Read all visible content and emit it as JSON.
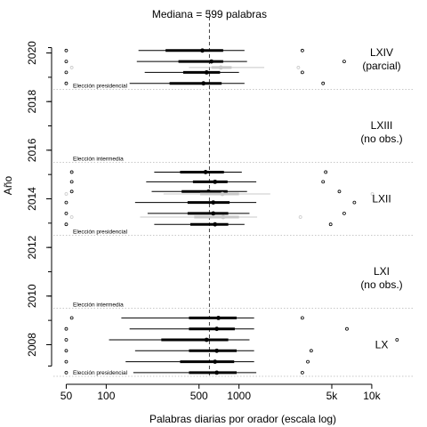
{
  "chart_data": {
    "type": "scatter",
    "title": "Mediana = 599 palabras",
    "xlabel": "Palabras diarias por orador (escala log)",
    "ylabel": "Año",
    "x_scale": "log",
    "xlim": [
      40,
      21000
    ],
    "ylim": [
      2006.7,
      2021.3
    ],
    "median": 599,
    "x_ticks": [
      {
        "value": 50,
        "label": "50"
      },
      {
        "value": 100,
        "label": "100"
      },
      {
        "value": 500,
        "label": "500"
      },
      {
        "value": 1000,
        "label": "1000"
      },
      {
        "value": 5000,
        "label": "5k"
      },
      {
        "value": 10000,
        "label": "10k"
      }
    ],
    "y_ticks": [
      2008,
      2010,
      2012,
      2014,
      2016,
      2018,
      2020
    ],
    "colors": {
      "observed": "#000000",
      "not_observed": "#c8c8c8",
      "reference": "#c8c8c8",
      "median": "#404040"
    },
    "election_lines": [
      {
        "year": 2006.7,
        "label": "Elección presidencial"
      },
      {
        "year": 2009.5,
        "label": "Elección intermedia"
      },
      {
        "year": 2012.5,
        "label": "Elección presidencial"
      },
      {
        "year": 2015.5,
        "label": "Elección intermedia"
      },
      {
        "year": 2018.5,
        "label": "Elección presidencial"
      }
    ],
    "legislatures": [
      {
        "name": "LXIV",
        "note": "(parcial)",
        "observed": true,
        "y": 2019.8
      },
      {
        "name": "LXIII",
        "note": "(no obs.)",
        "observed": false,
        "y": 2016.8
      },
      {
        "name": "LXII",
        "note": "",
        "observed": true,
        "y": 2014.0
      },
      {
        "name": "LXI",
        "note": "(no obs.)",
        "observed": false,
        "y": 2010.8
      },
      {
        "name": "LX",
        "note": "",
        "observed": true,
        "y": 2008.0
      }
    ],
    "series": [
      {
        "name": "black",
        "color": "#000000",
        "rows": [
          {
            "y": 2020.1,
            "q05": 175,
            "q25": 280,
            "median": 530,
            "q75": 760,
            "q95": 1100,
            "lo": 50,
            "hi": 3000
          },
          {
            "y": 2019.65,
            "q05": 170,
            "q25": 350,
            "median": 620,
            "q75": 760,
            "q95": 1150,
            "lo": 50,
            "hi": 6200
          },
          {
            "y": 2019.2,
            "q05": 195,
            "q25": 380,
            "median": 570,
            "q75": 720,
            "q95": 1000,
            "lo": 50,
            "hi": 3000
          },
          {
            "y": 2018.75,
            "q05": 150,
            "q25": 300,
            "median": 540,
            "q75": 740,
            "q95": 1100,
            "lo": 50,
            "hi": 4300
          },
          {
            "y": 2015.1,
            "q05": 230,
            "q25": 360,
            "median": 560,
            "q75": 770,
            "q95": 1050,
            "lo": 55,
            "hi": 4500
          },
          {
            "y": 2014.7,
            "q05": 200,
            "q25": 450,
            "median": 660,
            "q75": 820,
            "q95": 1350,
            "lo": 55,
            "hi": 4300
          },
          {
            "y": 2014.3,
            "q05": 220,
            "q25": 370,
            "median": 590,
            "q75": 820,
            "q95": 1150,
            "lo": 55,
            "hi": 5700
          },
          {
            "y": 2013.85,
            "q05": 165,
            "q25": 410,
            "median": 640,
            "q75": 850,
            "q95": 1350,
            "lo": 50,
            "hi": 7400
          },
          {
            "y": 2013.4,
            "q05": 205,
            "q25": 410,
            "median": 640,
            "q75": 830,
            "q95": 1200,
            "lo": 50,
            "hi": 6200
          },
          {
            "y": 2012.95,
            "q05": 230,
            "q25": 430,
            "median": 660,
            "q75": 830,
            "q95": 1100,
            "lo": 50,
            "hi": 4900
          },
          {
            "y": 2009.1,
            "q05": 130,
            "q25": 420,
            "median": 700,
            "q75": 960,
            "q95": 1300,
            "lo": 55,
            "hi": 3000
          },
          {
            "y": 2008.65,
            "q05": 150,
            "q25": 420,
            "median": 680,
            "q75": 930,
            "q95": 1300,
            "lo": 50,
            "hi": 6500
          },
          {
            "y": 2008.2,
            "q05": 105,
            "q25": 260,
            "median": 570,
            "q75": 830,
            "q95": 1200,
            "lo": 50,
            "hi": 15500
          },
          {
            "y": 2007.75,
            "q05": 165,
            "q25": 420,
            "median": 680,
            "q75": 960,
            "q95": 1300,
            "lo": 50,
            "hi": 3500
          },
          {
            "y": 2007.3,
            "q05": 140,
            "q25": 360,
            "median": 660,
            "q75": 920,
            "q95": 1300,
            "lo": 50,
            "hi": 3300
          },
          {
            "y": 2006.85,
            "q05": 160,
            "q25": 420,
            "median": 680,
            "q75": 960,
            "q95": 1350,
            "lo": 50,
            "hi": 3000
          }
        ]
      },
      {
        "name": "grey",
        "color": "#c8c8c8",
        "rows": [
          {
            "y": 2019.4,
            "q05": 420,
            "q25": 620,
            "median": 730,
            "q75": 880,
            "q95": 1550,
            "lo": 55,
            "hi": 2800
          },
          {
            "y": 2014.2,
            "q05": 270,
            "q25": 510,
            "median": 750,
            "q75": 1000,
            "q95": 1720,
            "lo": 50,
            "hi": 10100
          },
          {
            "y": 2013.25,
            "q05": 180,
            "q25": 460,
            "median": 760,
            "q75": 1000,
            "q95": 1370,
            "lo": 55,
            "hi": 2900
          }
        ]
      }
    ]
  }
}
